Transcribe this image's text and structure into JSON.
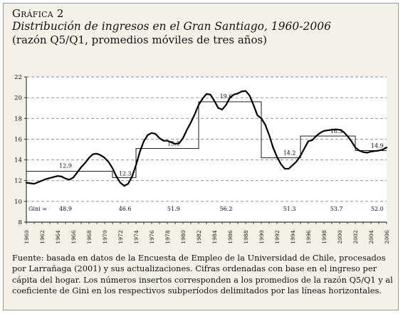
{
  "header": {
    "kicker": "Gráfica 2",
    "title": "Distribución de ingresos en el Gran Santiago, 1960-2006",
    "subtitle": "(razón Q5/Q1, promedios móviles de tres años)"
  },
  "chart_data": {
    "type": "line",
    "title": "Distribución de ingresos en el Gran Santiago, 1960-2006",
    "xlabel": "",
    "ylabel": "",
    "xlim": [
      1960,
      2006
    ],
    "ylim": [
      8,
      22
    ],
    "y_ticks": [
      8,
      10,
      12,
      14,
      16,
      18,
      20,
      22
    ],
    "x_ticks": [
      1960,
      1962,
      1964,
      1966,
      1968,
      1970,
      1972,
      1974,
      1976,
      1978,
      1980,
      1982,
      1984,
      1986,
      1988,
      1990,
      1992,
      1994,
      1996,
      1998,
      2000,
      2002,
      2004,
      2006
    ],
    "grid": "horizontal-dashed",
    "colors": {
      "line": "#000000",
      "grid": "#8a8a8a",
      "plot_background": "#ffffff"
    },
    "series": [
      {
        "x": [
          1960,
          1960.5,
          1961,
          1961.5,
          1962,
          1962.5,
          1963,
          1963.5,
          1964,
          1964.5,
          1965,
          1965.5,
          1966,
          1966.5,
          1967,
          1967.5,
          1968,
          1968.5,
          1969,
          1969.5,
          1970,
          1970.5,
          1971,
          1971.5,
          1972,
          1972.5,
          1973,
          1973.5,
          1974,
          1974.5,
          1975,
          1975.5,
          1976,
          1976.5,
          1977,
          1977.5,
          1978,
          1978.5,
          1979,
          1979.5,
          1980,
          1980.5,
          1981,
          1981.5,
          1982,
          1982.5,
          1983,
          1983.5,
          1984,
          1984.5,
          1985,
          1985.5,
          1986,
          1986.5,
          1987,
          1987.5,
          1988,
          1988.5,
          1989,
          1989.5,
          1990,
          1990.5,
          1991,
          1991.5,
          1992,
          1992.5,
          1993,
          1993.5,
          1994,
          1994.5,
          1995,
          1995.5,
          1996,
          1996.5,
          1997,
          1997.5,
          1998,
          1998.5,
          1999,
          1999.5,
          2000,
          2000.5,
          2001,
          2001.5,
          2002,
          2002.5,
          2003,
          2003.5,
          2004,
          2004.5,
          2005,
          2005.5,
          2006
        ],
        "values": [
          11.8,
          11.75,
          11.7,
          11.85,
          12.0,
          12.15,
          12.25,
          12.35,
          12.45,
          12.4,
          12.2,
          12.1,
          12.3,
          12.8,
          13.3,
          13.7,
          14.2,
          14.55,
          14.6,
          14.45,
          14.2,
          13.8,
          13.2,
          12.4,
          11.8,
          11.5,
          11.7,
          12.4,
          13.5,
          14.8,
          15.8,
          16.4,
          16.6,
          16.5,
          16.1,
          15.85,
          15.85,
          15.7,
          15.55,
          15.6,
          16.1,
          16.9,
          17.6,
          18.4,
          19.3,
          19.9,
          20.35,
          20.3,
          19.7,
          19.0,
          18.85,
          19.3,
          20.0,
          20.3,
          20.4,
          20.6,
          20.65,
          20.2,
          19.3,
          18.3,
          18.0,
          17.4,
          16.4,
          15.2,
          14.3,
          13.6,
          13.15,
          13.15,
          13.5,
          13.85,
          14.4,
          15.1,
          15.8,
          15.9,
          16.3,
          16.6,
          16.8,
          16.85,
          16.9,
          16.95,
          16.9,
          16.7,
          16.3,
          15.8,
          15.2,
          14.9,
          14.75,
          14.7,
          14.8,
          14.85,
          14.9,
          15.0,
          15.2
        ]
      }
    ],
    "period_averages": [
      {
        "from": 1960,
        "to": 1971,
        "value": 12.9,
        "label": "12.9",
        "gini": "48.9"
      },
      {
        "from": 1971,
        "to": 1974,
        "value": 12.3,
        "label": "12.3",
        "gini": "46.6"
      },
      {
        "from": 1974,
        "to": 1982,
        "value": 15.1,
        "label": "15.1",
        "gini": "51.9"
      },
      {
        "from": 1982,
        "to": 1990,
        "value": 19.6,
        "label": "19.6",
        "gini": "56.2"
      },
      {
        "from": 1990,
        "to": 1995,
        "value": 14.2,
        "label": "14.2",
        "gini": "51.3"
      },
      {
        "from": 1995,
        "to": 2002,
        "value": 16.3,
        "label": "16.3",
        "gini": "53.7"
      },
      {
        "from": 2002,
        "to": 2006,
        "value": 14.9,
        "label": "14.9",
        "gini": "52.0"
      }
    ],
    "gini_label": "Gini ="
  },
  "footer": {
    "source": "Fuente: basada en datos de la Encuesta de Empleo de la Universidad de Chile, procesados por Larrañaga (2001) y sus actualizaciones. Cifras ordenadas con base en el ingreso per cápita del hogar. Los números insertos corresponden a los promedios de la razón Q5/Q1 y al coeficiente de Gini en los respectivos subperíodos delimitados por las líneas horizontales."
  }
}
